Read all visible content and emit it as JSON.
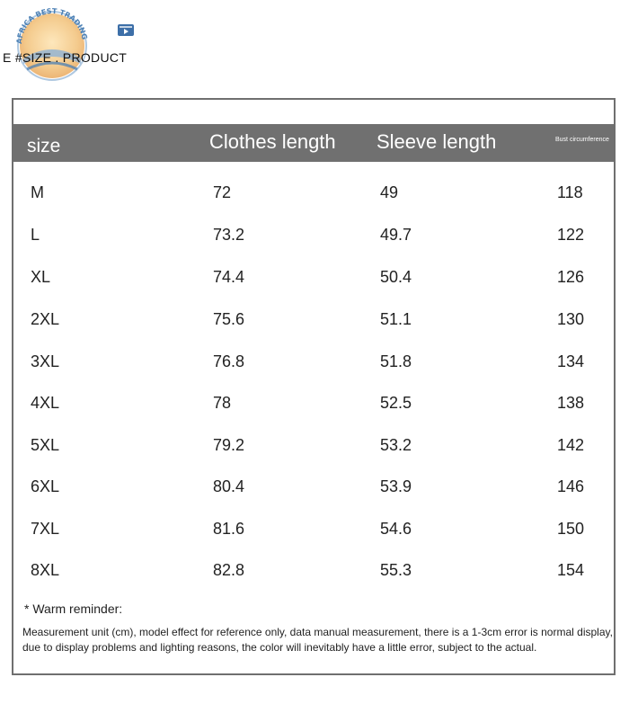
{
  "logo": {
    "text": "AFRICA BEST TRADING PLAT",
    "icon": "logo-badge"
  },
  "heading": "E #SIZE . PRODUCT",
  "table": {
    "headers": {
      "size": "size",
      "clothes": "Clothes length",
      "sleeve": "Sleeve length",
      "bust": "Bust circumference"
    },
    "rows": [
      {
        "size": "M",
        "clothes": "72",
        "sleeve": "49",
        "bust": "118"
      },
      {
        "size": "L",
        "clothes": "73.2",
        "sleeve": "49.7",
        "bust": "122"
      },
      {
        "size": "XL",
        "clothes": "74.4",
        "sleeve": "50.4",
        "bust": "126"
      },
      {
        "size": "2XL",
        "clothes": "75.6",
        "sleeve": "51.1",
        "bust": "130"
      },
      {
        "size": "3XL",
        "clothes": "76.8",
        "sleeve": "51.8",
        "bust": "134"
      },
      {
        "size": "4XL",
        "clothes": "78",
        "sleeve": "52.5",
        "bust": "138"
      },
      {
        "size": "5XL",
        "clothes": "79.2",
        "sleeve": "53.2",
        "bust": "142"
      },
      {
        "size": "6XL",
        "clothes": "80.4",
        "sleeve": "53.9",
        "bust": "146"
      },
      {
        "size": "7XL",
        "clothes": "81.6",
        "sleeve": "54.6",
        "bust": "150"
      },
      {
        "size": "8XL",
        "clothes": "82.8",
        "sleeve": "55.3",
        "bust": "154"
      }
    ]
  },
  "reminder": {
    "title": "* Warm reminder:",
    "text": "Measurement unit (cm), model effect for reference only, data manual measurement, there is a 1-3cm error is normal display, due to display problems and lighting reasons, the color will inevitably have a little error, subject to the actual."
  },
  "colors": {
    "header_bg": "#707070",
    "border": "#6f6f6f",
    "logo_blue": "#4a7fb4",
    "logo_orange": "#f0b66a"
  }
}
